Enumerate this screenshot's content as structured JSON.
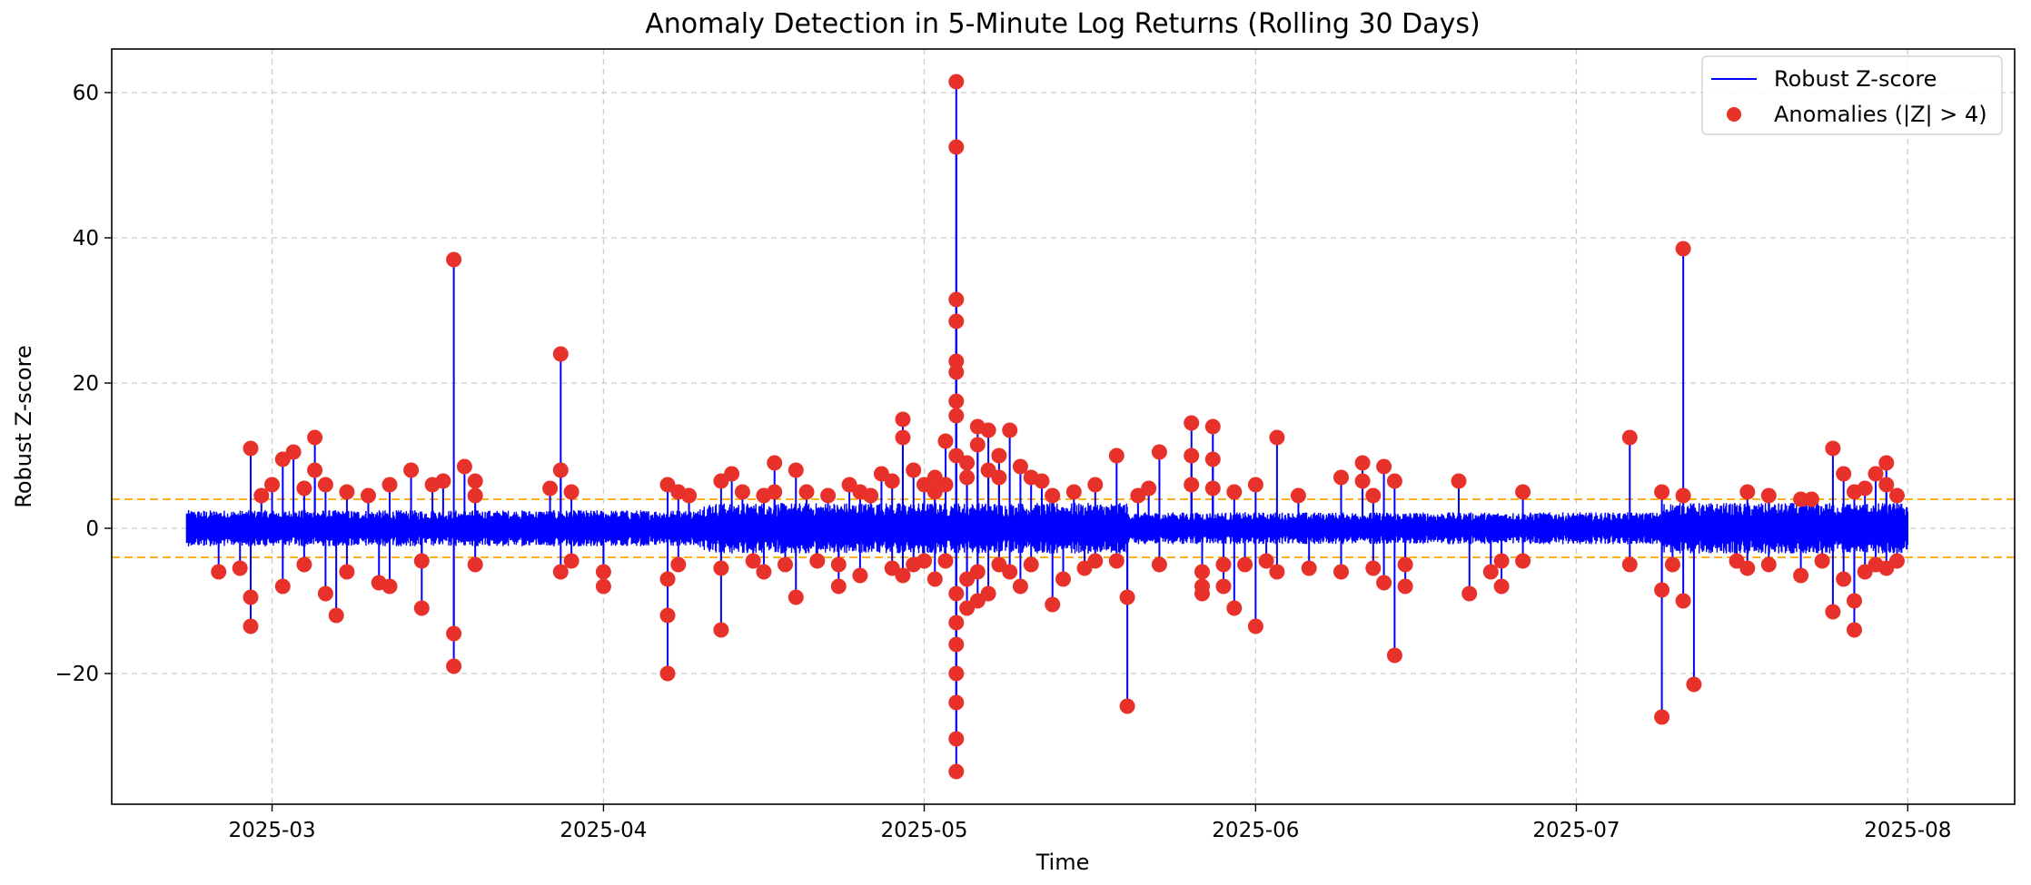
{
  "chart_data": {
    "type": "line",
    "title": "Anomaly Detection in 5-Minute Log Returns (Rolling 30 Days)",
    "xlabel": "Time",
    "ylabel": "Robust Z-score",
    "x_range": [
      "2025-02-14",
      "2025-08-11"
    ],
    "y_range": [
      -38,
      66
    ],
    "x_ticks": [
      "2025-03",
      "2025-04",
      "2025-05",
      "2025-06",
      "2025-07",
      "2025-08"
    ],
    "x_tick_dates": [
      "2025-03-01",
      "2025-04-01",
      "2025-05-01",
      "2025-06-01",
      "2025-07-01",
      "2025-08-01"
    ],
    "y_ticks": [
      -20,
      0,
      20,
      40,
      60
    ],
    "y_tick_labels": [
      "−20",
      "0",
      "20",
      "40",
      "60"
    ],
    "grid": true,
    "legend_position": "top-right",
    "threshold": 4,
    "colors": {
      "series": "#0000ff",
      "anomaly": "#e8312a",
      "threshold": "#ffa500",
      "grid": "#cccccc"
    },
    "series": [
      {
        "name": "Robust Z-score",
        "kind": "line",
        "x_start": "2025-02-21",
        "x_end": "2025-08-01",
        "noise_amplitude_segments": [
          {
            "start": "2025-02-21",
            "end": "2025-04-10",
            "amplitude": 2.5
          },
          {
            "start": "2025-04-10",
            "end": "2025-05-20",
            "amplitude": 3.5
          },
          {
            "start": "2025-05-20",
            "end": "2025-07-09",
            "amplitude": 2.2
          },
          {
            "start": "2025-07-09",
            "end": "2025-08-01",
            "amplitude": 3.5
          }
        ]
      },
      {
        "name": "Anomalies (|Z| > 4)",
        "kind": "scatter",
        "points": [
          [
            "2025-02-27",
            11
          ],
          [
            "2025-02-27",
            -13.5
          ],
          [
            "2025-02-27",
            -9.5
          ],
          [
            "2025-02-26",
            -5.5
          ],
          [
            "2025-02-28",
            4.5
          ],
          [
            "2025-02-24",
            -6
          ],
          [
            "2025-03-01",
            6
          ],
          [
            "2025-03-02",
            -8
          ],
          [
            "2025-03-02",
            9.5
          ],
          [
            "2025-03-03",
            10.5
          ],
          [
            "2025-03-04",
            5.5
          ],
          [
            "2025-03-04",
            -5
          ],
          [
            "2025-03-05",
            12.5
          ],
          [
            "2025-03-05",
            8
          ],
          [
            "2025-03-06",
            -9
          ],
          [
            "2025-03-06",
            6
          ],
          [
            "2025-03-07",
            -12
          ],
          [
            "2025-03-08",
            5
          ],
          [
            "2025-03-08",
            -6
          ],
          [
            "2025-03-10",
            4.5
          ],
          [
            "2025-03-11",
            -7.5
          ],
          [
            "2025-03-12",
            6
          ],
          [
            "2025-03-12",
            -8
          ],
          [
            "2025-03-14",
            8
          ],
          [
            "2025-03-15",
            -4.5
          ],
          [
            "2025-03-15",
            -11
          ],
          [
            "2025-03-16",
            6
          ],
          [
            "2025-03-17",
            6.5
          ],
          [
            "2025-03-18",
            -14.5
          ],
          [
            "2025-03-18",
            -19
          ],
          [
            "2025-03-18",
            37
          ],
          [
            "2025-03-19",
            8.5
          ],
          [
            "2025-03-20",
            -5
          ],
          [
            "2025-03-20",
            6.5
          ],
          [
            "2025-03-20",
            4.5
          ],
          [
            "2025-03-27",
            5.5
          ],
          [
            "2025-03-28",
            24
          ],
          [
            "2025-03-28",
            8
          ],
          [
            "2025-03-28",
            -6
          ],
          [
            "2025-03-29",
            5
          ],
          [
            "2025-03-29",
            -4.5
          ],
          [
            "2025-04-01",
            -6
          ],
          [
            "2025-04-01",
            -8
          ],
          [
            "2025-04-07",
            6
          ],
          [
            "2025-04-07",
            -7
          ],
          [
            "2025-04-07",
            -12
          ],
          [
            "2025-04-07",
            -20
          ],
          [
            "2025-04-08",
            5
          ],
          [
            "2025-04-08",
            -5
          ],
          [
            "2025-04-09",
            4.5
          ],
          [
            "2025-04-12",
            -14
          ],
          [
            "2025-04-12",
            6.5
          ],
          [
            "2025-04-12",
            -5.5
          ],
          [
            "2025-04-13",
            7.5
          ],
          [
            "2025-04-14",
            5
          ],
          [
            "2025-04-15",
            -4.5
          ],
          [
            "2025-04-16",
            4.5
          ],
          [
            "2025-04-16",
            -6
          ],
          [
            "2025-04-17",
            9
          ],
          [
            "2025-04-17",
            5
          ],
          [
            "2025-04-18",
            -5
          ],
          [
            "2025-04-19",
            -9.5
          ],
          [
            "2025-04-19",
            8
          ],
          [
            "2025-04-20",
            5
          ],
          [
            "2025-04-21",
            -4.5
          ],
          [
            "2025-04-22",
            4.5
          ],
          [
            "2025-04-23",
            -8
          ],
          [
            "2025-04-23",
            -5
          ],
          [
            "2025-04-24",
            6
          ],
          [
            "2025-04-25",
            -6.5
          ],
          [
            "2025-04-25",
            5
          ],
          [
            "2025-04-26",
            4.5
          ],
          [
            "2025-04-27",
            7.5
          ],
          [
            "2025-04-28",
            -5.5
          ],
          [
            "2025-04-28",
            6.5
          ],
          [
            "2025-04-29",
            15
          ],
          [
            "2025-04-29",
            12.5
          ],
          [
            "2025-04-29",
            -6.5
          ],
          [
            "2025-04-30",
            8
          ],
          [
            "2025-04-30",
            -5
          ],
          [
            "2025-05-01",
            6
          ],
          [
            "2025-05-01",
            -4.5
          ],
          [
            "2025-05-02",
            7
          ],
          [
            "2025-05-02",
            -7
          ],
          [
            "2025-05-02",
            5
          ],
          [
            "2025-05-03",
            -4.5
          ],
          [
            "2025-05-03",
            6
          ],
          [
            "2025-05-03",
            12
          ],
          [
            "2025-05-04",
            10
          ],
          [
            "2025-05-04",
            -9
          ],
          [
            "2025-05-04",
            -13
          ],
          [
            "2025-05-04",
            -16
          ],
          [
            "2025-05-04",
            17.5
          ],
          [
            "2025-05-04",
            15.5
          ],
          [
            "2025-05-04",
            21.5
          ],
          [
            "2025-05-04",
            23
          ],
          [
            "2025-05-04",
            28.5
          ],
          [
            "2025-05-04",
            31.5
          ],
          [
            "2025-05-04",
            52.5
          ],
          [
            "2025-05-04",
            61.5
          ],
          [
            "2025-05-04",
            -20
          ],
          [
            "2025-05-04",
            -24
          ],
          [
            "2025-05-04",
            -29
          ],
          [
            "2025-05-04",
            -33.5
          ],
          [
            "2025-05-05",
            9
          ],
          [
            "2025-05-05",
            -11
          ],
          [
            "2025-05-05",
            7
          ],
          [
            "2025-05-05",
            -7
          ],
          [
            "2025-05-06",
            14
          ],
          [
            "2025-05-06",
            11.5
          ],
          [
            "2025-05-06",
            -6
          ],
          [
            "2025-05-06",
            -10
          ],
          [
            "2025-05-07",
            8
          ],
          [
            "2025-05-07",
            13.5
          ],
          [
            "2025-05-07",
            -9
          ],
          [
            "2025-05-08",
            10
          ],
          [
            "2025-05-08",
            7
          ],
          [
            "2025-05-08",
            -5
          ],
          [
            "2025-05-09",
            13.5
          ],
          [
            "2025-05-09",
            -6
          ],
          [
            "2025-05-10",
            8.5
          ],
          [
            "2025-05-10",
            -8
          ],
          [
            "2025-05-11",
            7
          ],
          [
            "2025-05-11",
            -5
          ],
          [
            "2025-05-12",
            6.5
          ],
          [
            "2025-05-13",
            -10.5
          ],
          [
            "2025-05-13",
            4.5
          ],
          [
            "2025-05-14",
            -7
          ],
          [
            "2025-05-15",
            5
          ],
          [
            "2025-05-16",
            -5.5
          ],
          [
            "2025-05-17",
            6
          ],
          [
            "2025-05-17",
            -4.5
          ],
          [
            "2025-05-19",
            10
          ],
          [
            "2025-05-19",
            -4.5
          ],
          [
            "2025-05-20",
            -9.5
          ],
          [
            "2025-05-20",
            -24.5
          ],
          [
            "2025-05-21",
            4.5
          ],
          [
            "2025-05-22",
            5.5
          ],
          [
            "2025-05-23",
            10.5
          ],
          [
            "2025-05-23",
            -5
          ],
          [
            "2025-05-26",
            14.5
          ],
          [
            "2025-05-26",
            10
          ],
          [
            "2025-05-26",
            6
          ],
          [
            "2025-05-27",
            -9
          ],
          [
            "2025-05-27",
            -6
          ],
          [
            "2025-05-27",
            -8
          ],
          [
            "2025-05-28",
            14
          ],
          [
            "2025-05-28",
            9.5
          ],
          [
            "2025-05-28",
            5.5
          ],
          [
            "2025-05-29",
            -5
          ],
          [
            "2025-05-29",
            -8
          ],
          [
            "2025-05-30",
            -11
          ],
          [
            "2025-05-30",
            5
          ],
          [
            "2025-05-31",
            -5
          ],
          [
            "2025-06-01",
            6
          ],
          [
            "2025-06-01",
            -13.5
          ],
          [
            "2025-06-02",
            -4.5
          ],
          [
            "2025-06-03",
            -6
          ],
          [
            "2025-06-03",
            12.5
          ],
          [
            "2025-06-05",
            4.5
          ],
          [
            "2025-06-06",
            -5.5
          ],
          [
            "2025-06-09",
            7
          ],
          [
            "2025-06-09",
            -6
          ],
          [
            "2025-06-11",
            9
          ],
          [
            "2025-06-11",
            6.5
          ],
          [
            "2025-06-12",
            -5.5
          ],
          [
            "2025-06-12",
            4.5
          ],
          [
            "2025-06-13",
            8.5
          ],
          [
            "2025-06-13",
            -7.5
          ],
          [
            "2025-06-14",
            -17.5
          ],
          [
            "2025-06-14",
            6.5
          ],
          [
            "2025-06-15",
            -8
          ],
          [
            "2025-06-15",
            -5
          ],
          [
            "2025-06-20",
            6.5
          ],
          [
            "2025-06-21",
            -9
          ],
          [
            "2025-06-23",
            -6
          ],
          [
            "2025-06-24",
            -8
          ],
          [
            "2025-06-24",
            -4.5
          ],
          [
            "2025-06-26",
            5
          ],
          [
            "2025-06-26",
            -4.5
          ],
          [
            "2025-07-06",
            -5
          ],
          [
            "2025-07-06",
            12.5
          ],
          [
            "2025-07-09",
            -26
          ],
          [
            "2025-07-09",
            -8.5
          ],
          [
            "2025-07-09",
            5
          ],
          [
            "2025-07-10",
            -5
          ],
          [
            "2025-07-11",
            4.5
          ],
          [
            "2025-07-11",
            38.5
          ],
          [
            "2025-07-11",
            -10
          ],
          [
            "2025-07-12",
            -21.5
          ],
          [
            "2025-07-16",
            -4.5
          ],
          [
            "2025-07-17",
            5
          ],
          [
            "2025-07-17",
            -5.5
          ],
          [
            "2025-07-19",
            4.5
          ],
          [
            "2025-07-19",
            -5
          ],
          [
            "2025-07-22",
            -6.5
          ],
          [
            "2025-07-22",
            4
          ],
          [
            "2025-07-23",
            4
          ],
          [
            "2025-07-24",
            -4.5
          ],
          [
            "2025-07-25",
            11
          ],
          [
            "2025-07-25",
            -11.5
          ],
          [
            "2025-07-26",
            7.5
          ],
          [
            "2025-07-26",
            -7
          ],
          [
            "2025-07-27",
            -10
          ],
          [
            "2025-07-27",
            -14
          ],
          [
            "2025-07-27",
            5
          ],
          [
            "2025-07-28",
            -6
          ],
          [
            "2025-07-28",
            5.5
          ],
          [
            "2025-07-29",
            7.5
          ],
          [
            "2025-07-29",
            -5
          ],
          [
            "2025-07-30",
            9
          ],
          [
            "2025-07-30",
            6
          ],
          [
            "2025-07-30",
            -5.5
          ],
          [
            "2025-07-31",
            4.5
          ],
          [
            "2025-07-31",
            -4.5
          ]
        ]
      }
    ],
    "threshold_lines": [
      4,
      -4
    ]
  }
}
